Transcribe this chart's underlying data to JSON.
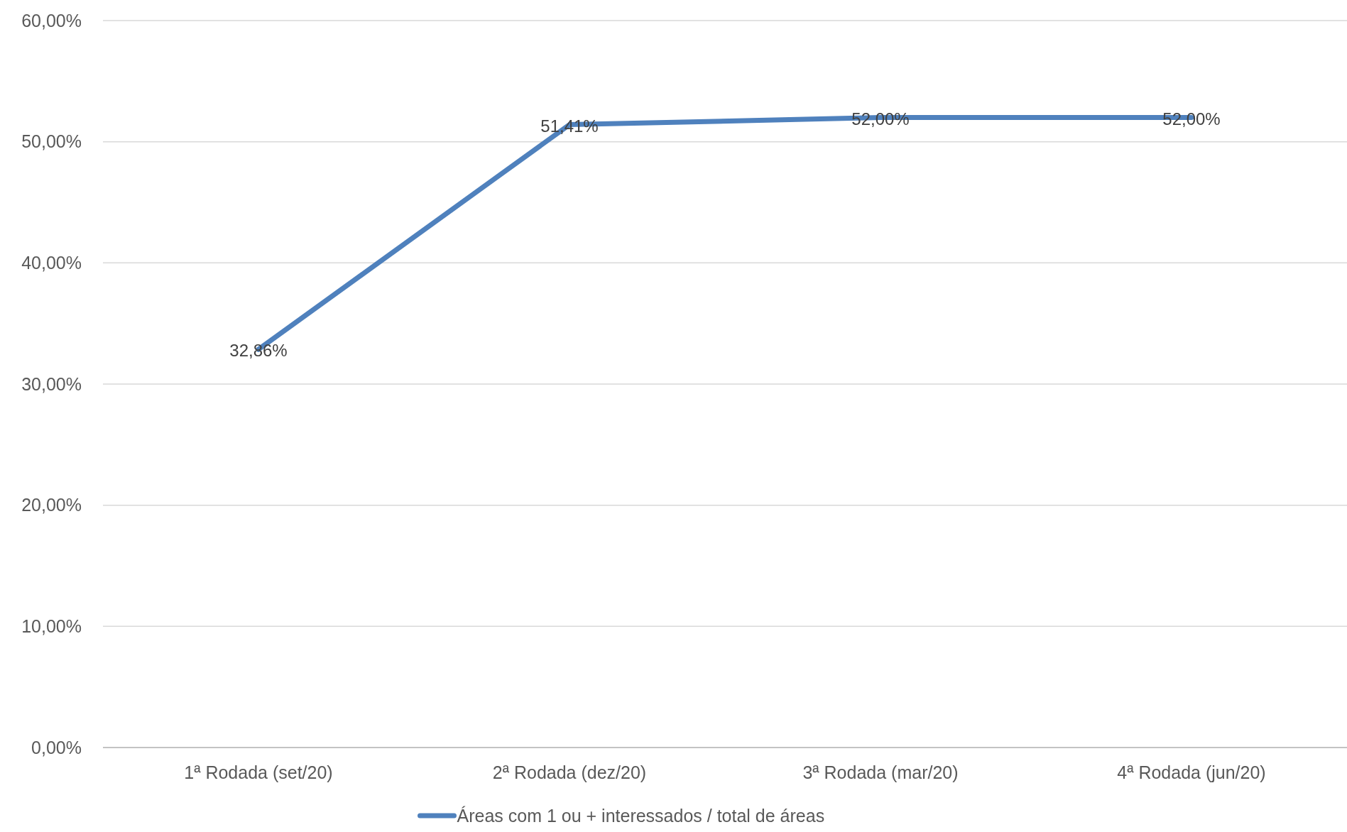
{
  "chart_data": {
    "type": "line",
    "categories": [
      "1ª Rodada (set/20)",
      "2ª Rodada (dez/20)",
      "3ª Rodada (mar/20)",
      "4ª Rodada (jun/20)"
    ],
    "series": [
      {
        "name": "Áreas com 1 ou + interessados / total de áreas",
        "color": "#4f81bd",
        "values": [
          32.86,
          51.41,
          52.0,
          52.0
        ],
        "value_labels": [
          "32,86%",
          "51,41%",
          "52,00%",
          "52,00%"
        ]
      }
    ],
    "ylim": [
      0,
      60
    ],
    "yticks": [
      {
        "value": 0,
        "label": "0,00%"
      },
      {
        "value": 10,
        "label": "10,00%"
      },
      {
        "value": 20,
        "label": "20,00%"
      },
      {
        "value": 30,
        "label": "30,00%"
      },
      {
        "value": 40,
        "label": "40,00%"
      },
      {
        "value": 50,
        "label": "50,00%"
      },
      {
        "value": 60,
        "label": "60,00%"
      }
    ],
    "grid": "y",
    "legend": "bottom",
    "marker": "none",
    "line_style": "solid"
  }
}
